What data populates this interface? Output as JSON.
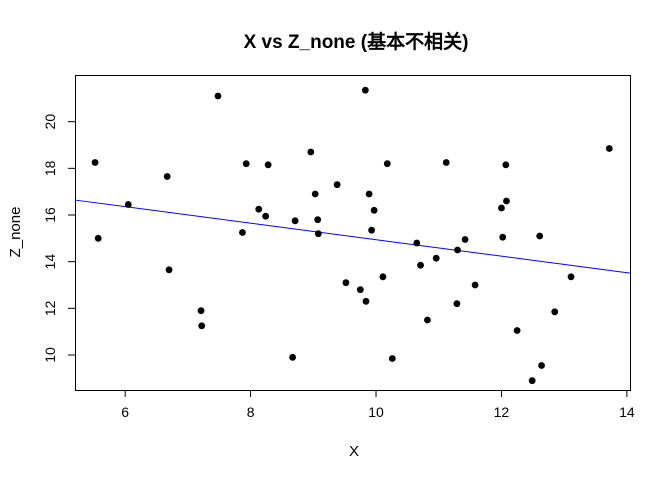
{
  "chart_data": {
    "type": "scatter",
    "title": "X vs Z_none (基本不相关)",
    "xlabel": "X",
    "ylabel": "Z_none",
    "xlim": [
      5.2,
      14.05
    ],
    "ylim": [
      8.5,
      22.0
    ],
    "x_ticks": [
      6,
      8,
      10,
      12,
      14
    ],
    "y_ticks": [
      10,
      12,
      14,
      16,
      18,
      20
    ],
    "grid": false,
    "legend": "none",
    "point_color": "#000000",
    "fit_line": {
      "color": "#0000ff",
      "x": [
        5.2,
        14.05
      ],
      "y": [
        16.64,
        13.51
      ]
    },
    "points": [
      {
        "x": 5.52,
        "y": 18.25
      },
      {
        "x": 5.57,
        "y": 15.0
      },
      {
        "x": 6.05,
        "y": 16.45
      },
      {
        "x": 6.67,
        "y": 17.65
      },
      {
        "x": 6.7,
        "y": 13.65
      },
      {
        "x": 7.21,
        "y": 11.9
      },
      {
        "x": 7.22,
        "y": 11.25
      },
      {
        "x": 7.48,
        "y": 21.1
      },
      {
        "x": 7.87,
        "y": 15.25
      },
      {
        "x": 7.93,
        "y": 18.2
      },
      {
        "x": 8.13,
        "y": 16.25
      },
      {
        "x": 8.24,
        "y": 15.95
      },
      {
        "x": 8.28,
        "y": 18.15
      },
      {
        "x": 8.67,
        "y": 9.9
      },
      {
        "x": 8.71,
        "y": 15.75
      },
      {
        "x": 8.96,
        "y": 18.7
      },
      {
        "x": 9.03,
        "y": 16.9
      },
      {
        "x": 9.07,
        "y": 15.8
      },
      {
        "x": 9.08,
        "y": 15.2
      },
      {
        "x": 9.38,
        "y": 17.3
      },
      {
        "x": 9.52,
        "y": 13.1
      },
      {
        "x": 9.75,
        "y": 12.8
      },
      {
        "x": 9.83,
        "y": 21.35
      },
      {
        "x": 9.84,
        "y": 12.3
      },
      {
        "x": 9.89,
        "y": 16.9
      },
      {
        "x": 9.93,
        "y": 15.35
      },
      {
        "x": 9.97,
        "y": 16.2
      },
      {
        "x": 10.11,
        "y": 13.35
      },
      {
        "x": 10.18,
        "y": 18.2
      },
      {
        "x": 10.26,
        "y": 9.85
      },
      {
        "x": 10.65,
        "y": 14.8
      },
      {
        "x": 10.71,
        "y": 13.85
      },
      {
        "x": 10.82,
        "y": 11.5
      },
      {
        "x": 10.96,
        "y": 14.15
      },
      {
        "x": 11.12,
        "y": 18.25
      },
      {
        "x": 11.29,
        "y": 12.2
      },
      {
        "x": 11.3,
        "y": 14.5
      },
      {
        "x": 11.42,
        "y": 14.95
      },
      {
        "x": 11.58,
        "y": 13.0
      },
      {
        "x": 12.0,
        "y": 16.3
      },
      {
        "x": 12.02,
        "y": 15.05
      },
      {
        "x": 12.07,
        "y": 18.15
      },
      {
        "x": 12.08,
        "y": 16.6
      },
      {
        "x": 12.25,
        "y": 11.05
      },
      {
        "x": 12.49,
        "y": 8.9
      },
      {
        "x": 12.61,
        "y": 15.1
      },
      {
        "x": 12.64,
        "y": 9.55
      },
      {
        "x": 12.85,
        "y": 11.85
      },
      {
        "x": 13.11,
        "y": 13.35
      },
      {
        "x": 13.72,
        "y": 18.85
      }
    ]
  }
}
